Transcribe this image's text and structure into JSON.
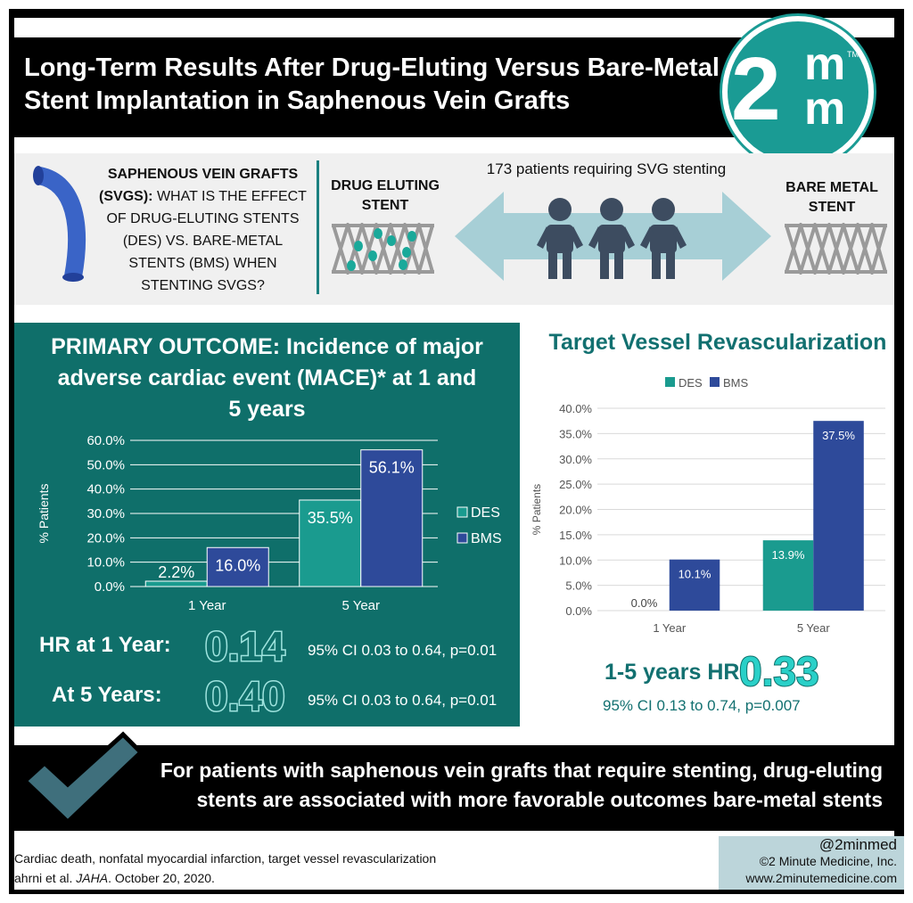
{
  "header": {
    "title_line1": "Long-Term Results After Drug-Eluting Versus Bare-Metal",
    "title_line2": "Stent Implantation in Saphenous Vein Grafts",
    "logo": {
      "big": "2",
      "m1": "m",
      "m2": "m",
      "tm": "TM"
    }
  },
  "banner": {
    "question_bold": "SAPHENOUS VEIN GRAFTS (SVGS):",
    "question_rest": "WHAT IS THE EFFECT OF DRUG-ELUTING STENTS (DES) VS. BARE-METAL STENTS (BMS) WHEN STENTING SVGS?",
    "des_label": "DRUG ELUTING STENT",
    "bms_label": "BARE METAL STENT",
    "patients": "173 patients requiring SVG stenting"
  },
  "primary": {
    "title": "PRIMARY OUTCOME: Incidence of major adverse cardiac event (MACE)* at 1 and 5 years",
    "hr1_label": "HR at 1 Year:",
    "hr1_value": "0.14",
    "hr1_ci": "95% CI 0.03 to 0.64, p=0.01",
    "hr5_label": "At 5 Years:",
    "hr5_value": "0.40",
    "hr5_ci": "95% CI 0.03 to 0.64, p=0.01"
  },
  "tvr": {
    "title": "Target Vessel Revascularization",
    "hr_label": "1-5 years HR",
    "hr_value": "0.33",
    "ci": "95% CI 0.13 to 0.74, p=0.007"
  },
  "conclusion": "For patients with saphenous vein grafts that require stenting, drug-eluting stents are associated with more favorable outcomes bare-metal stents",
  "footer": {
    "footnote1": "Cardiac death, nonfatal myocardial infarction, target vessel revascularization",
    "footnote2_pre": "ahrni et al. ",
    "footnote2_journal": "JAHA",
    "footnote2_post": ". October 20, 2020.",
    "handle": "@2minmed",
    "copyright": "©2 Minute Medicine, Inc.",
    "website": "www.2minutemedicine.com"
  },
  "colors": {
    "des": "#1a9b8f",
    "bms": "#2e4a9a",
    "teal_dark": "#0f6f6a"
  },
  "chart_data": [
    {
      "type": "bar",
      "title": "",
      "categories": [
        "1 Year",
        "5 Year"
      ],
      "series": [
        {
          "name": "DES",
          "values": [
            2.2,
            35.5
          ],
          "labels": [
            "2.2%",
            "35.5%"
          ]
        },
        {
          "name": "BMS",
          "values": [
            16.0,
            56.1
          ],
          "labels": [
            "16.0%",
            "56.1%"
          ]
        }
      ],
      "ylabel": "% Patients",
      "ylim": [
        0,
        60
      ],
      "yticks": [
        "0.0%",
        "10.0%",
        "20.0%",
        "30.0%",
        "40.0%",
        "50.0%",
        "60.0%"
      ],
      "legend": "right",
      "grid": true
    },
    {
      "type": "bar",
      "title": "Target Vessel Revascularization",
      "categories": [
        "1 Year",
        "5 Year"
      ],
      "series": [
        {
          "name": "DES",
          "values": [
            0.0,
            13.9
          ],
          "labels": [
            "0.0%",
            "13.9%"
          ]
        },
        {
          "name": "BMS",
          "values": [
            10.1,
            37.5
          ],
          "labels": [
            "10.1%",
            "37.5%"
          ]
        }
      ],
      "ylabel": "% Patients",
      "ylim": [
        0,
        40
      ],
      "yticks": [
        "0.0%",
        "5.0%",
        "10.0%",
        "15.0%",
        "20.0%",
        "25.0%",
        "30.0%",
        "35.0%",
        "40.0%"
      ],
      "legend": "top",
      "grid": true
    }
  ]
}
